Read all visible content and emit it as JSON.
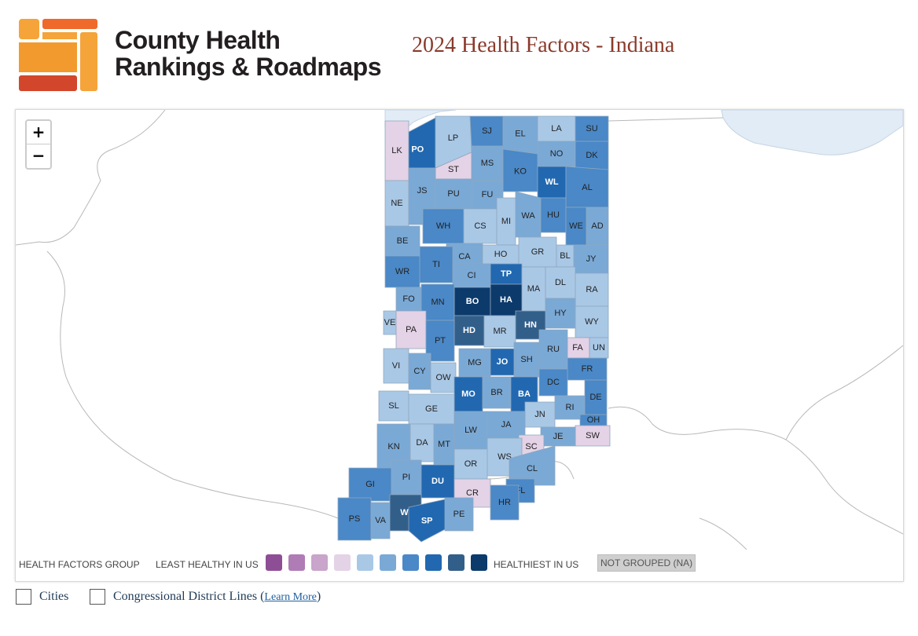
{
  "brand": {
    "name_line1": "County Health",
    "name_line2": "Rankings & Roadmaps",
    "colors": {
      "orange": "#f5a43a",
      "dark_orange": "#ef7a2a",
      "red": "#d2462b"
    }
  },
  "title": "2024 Health Factors - Indiana",
  "zoom": {
    "in_label": "+",
    "out_label": "−"
  },
  "legend": {
    "group_label": "HEALTH FACTORS GROUP",
    "least_label": "LEAST HEALTHY IN US",
    "healthiest_label": "HEALTHIEST IN US",
    "na_label": "NOT GROUPED (NA)",
    "colors": [
      "#8e4e96",
      "#b07cb6",
      "#c9a4cb",
      "#e4d2e6",
      "#a9c8e6",
      "#7aa9d6",
      "#4a88c7",
      "#2168b0",
      "#325f8a",
      "#0c3a6b"
    ]
  },
  "counties": [
    {
      "code": "LK",
      "group": 3
    },
    {
      "code": "PO",
      "group": 7
    },
    {
      "code": "LP",
      "group": 4
    },
    {
      "code": "SJ",
      "group": 6
    },
    {
      "code": "EL",
      "group": 5
    },
    {
      "code": "LA",
      "group": 4
    },
    {
      "code": "SU",
      "group": 6
    },
    {
      "code": "ST",
      "group": 3
    },
    {
      "code": "MS",
      "group": 5
    },
    {
      "code": "NO",
      "group": 5
    },
    {
      "code": "DK",
      "group": 6
    },
    {
      "code": "KO",
      "group": 6
    },
    {
      "code": "NE",
      "group": 4
    },
    {
      "code": "JS",
      "group": 5
    },
    {
      "code": "PU",
      "group": 5
    },
    {
      "code": "FU",
      "group": 5
    },
    {
      "code": "WL",
      "group": 7
    },
    {
      "code": "AL",
      "group": 6
    },
    {
      "code": "WH",
      "group": 6
    },
    {
      "code": "CS",
      "group": 4
    },
    {
      "code": "MI",
      "group": 4
    },
    {
      "code": "WA",
      "group": 5
    },
    {
      "code": "HU",
      "group": 6
    },
    {
      "code": "WE",
      "group": 6
    },
    {
      "code": "AD",
      "group": 5
    },
    {
      "code": "BE",
      "group": 5
    },
    {
      "code": "CA",
      "group": 5
    },
    {
      "code": "HO",
      "group": 4
    },
    {
      "code": "GR",
      "group": 4
    },
    {
      "code": "BL",
      "group": 4
    },
    {
      "code": "JY",
      "group": 5
    },
    {
      "code": "TI",
      "group": 6
    },
    {
      "code": "WR",
      "group": 6
    },
    {
      "code": "CI",
      "group": 5
    },
    {
      "code": "TP",
      "group": 7
    },
    {
      "code": "DL",
      "group": 4
    },
    {
      "code": "RA",
      "group": 4
    },
    {
      "code": "FO",
      "group": 5
    },
    {
      "code": "MA",
      "group": 4
    },
    {
      "code": "BO",
      "group": 9
    },
    {
      "code": "HA",
      "group": 9
    },
    {
      "code": "MN",
      "group": 6
    },
    {
      "code": "VE",
      "group": 4
    },
    {
      "code": "HY",
      "group": 5
    },
    {
      "code": "WY",
      "group": 4
    },
    {
      "code": "PA",
      "group": 3
    },
    {
      "code": "HD",
      "group": 8
    },
    {
      "code": "MR",
      "group": 4
    },
    {
      "code": "HN",
      "group": 8
    },
    {
      "code": "FA",
      "group": 3
    },
    {
      "code": "UN",
      "group": 4
    },
    {
      "code": "PT",
      "group": 6
    },
    {
      "code": "RU",
      "group": 5
    },
    {
      "code": "SH",
      "group": 5
    },
    {
      "code": "VI",
      "group": 4
    },
    {
      "code": "CY",
      "group": 5
    },
    {
      "code": "MG",
      "group": 5
    },
    {
      "code": "JO",
      "group": 7
    },
    {
      "code": "FR",
      "group": 6
    },
    {
      "code": "OW",
      "group": 4
    },
    {
      "code": "DC",
      "group": 6
    },
    {
      "code": "MO",
      "group": 7
    },
    {
      "code": "BR",
      "group": 5
    },
    {
      "code": "BA",
      "group": 7
    },
    {
      "code": "DE",
      "group": 6
    },
    {
      "code": "SL",
      "group": 4
    },
    {
      "code": "GE",
      "group": 4
    },
    {
      "code": "RI",
      "group": 5
    },
    {
      "code": "JN",
      "group": 4
    },
    {
      "code": "OH",
      "group": 6
    },
    {
      "code": "JA",
      "group": 5
    },
    {
      "code": "SW",
      "group": 3
    },
    {
      "code": "LW",
      "group": 5
    },
    {
      "code": "KN",
      "group": 5
    },
    {
      "code": "DA",
      "group": 4
    },
    {
      "code": "MT",
      "group": 5
    },
    {
      "code": "JE",
      "group": 5
    },
    {
      "code": "SC",
      "group": 3
    },
    {
      "code": "OR",
      "group": 4
    },
    {
      "code": "WS",
      "group": 4
    },
    {
      "code": "CL",
      "group": 5
    },
    {
      "code": "GI",
      "group": 6
    },
    {
      "code": "PI",
      "group": 5
    },
    {
      "code": "DU",
      "group": 7
    },
    {
      "code": "CR",
      "group": 3
    },
    {
      "code": "FL",
      "group": 6
    },
    {
      "code": "HR",
      "group": 6
    },
    {
      "code": "PS",
      "group": 6
    },
    {
      "code": "VA",
      "group": 5
    },
    {
      "code": "WI",
      "group": 8
    },
    {
      "code": "SP",
      "group": 7
    },
    {
      "code": "PE",
      "group": 5
    }
  ],
  "options": {
    "cities_label": "Cities",
    "districts_label": "Congressional District Lines (",
    "learn_more": "Learn More",
    "close_paren": ")"
  }
}
